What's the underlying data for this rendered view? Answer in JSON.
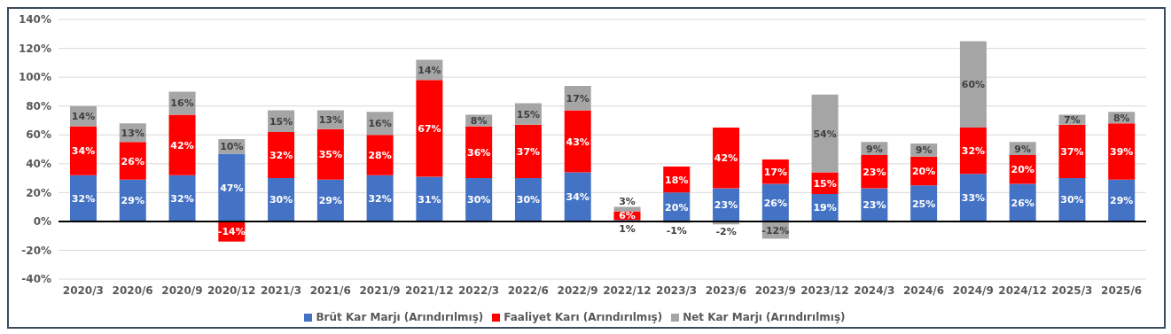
{
  "chart_data": {
    "type": "bar",
    "stacked": true,
    "categories": [
      "2020/3",
      "2020/6",
      "2020/9",
      "2020/12",
      "2021/3",
      "2021/6",
      "2021/9",
      "2021/12",
      "2022/3",
      "2022/6",
      "2022/9",
      "2022/12",
      "2023/3",
      "2023/6",
      "2023/9",
      "2023/12",
      "2024/3",
      "2024/6",
      "2024/9",
      "2024/12",
      "2025/3",
      "2025/6"
    ],
    "series": [
      {
        "name": "Brüt Kar Marjı (Arındırılmış)",
        "color": "#4472c4",
        "values": [
          32,
          29,
          32,
          47,
          30,
          29,
          32,
          31,
          30,
          30,
          34,
          1,
          20,
          23,
          26,
          19,
          23,
          25,
          33,
          26,
          30,
          29
        ],
        "value_labels": [
          "32%",
          "29%",
          "32%",
          "47%",
          "30%",
          "29%",
          "32%",
          "31%",
          "30%",
          "30%",
          "34%",
          "1%",
          "20%",
          "23%",
          "26%",
          "19%",
          "23%",
          "25%",
          "33%",
          "26%",
          "30%",
          "29%"
        ]
      },
      {
        "name": "Faaliyet Karı (Arındırılmış)",
        "color": "#ff0000",
        "values": [
          34,
          26,
          42,
          -14,
          32,
          35,
          28,
          67,
          36,
          37,
          43,
          6,
          18,
          42,
          17,
          15,
          23,
          20,
          32,
          20,
          37,
          39
        ],
        "value_labels": [
          "34%",
          "26%",
          "42%",
          "-14%",
          "32%",
          "35%",
          "28%",
          "67%",
          "36%",
          "37%",
          "43%",
          "6%",
          "18%",
          "42%",
          "17%",
          "15%",
          "23%",
          "20%",
          "32%",
          "20%",
          "37%",
          "39%"
        ]
      },
      {
        "name": "Net Kar Marjı (Arındırılmış)",
        "color": "#a5a5a5",
        "values": [
          14,
          13,
          16,
          10,
          15,
          13,
          16,
          14,
          8,
          15,
          17,
          3,
          -1,
          -2,
          -12,
          54,
          9,
          9,
          60,
          9,
          7,
          8
        ],
        "value_labels": [
          "14%",
          "13%",
          "16%",
          "10%",
          "15%",
          "13%",
          "16%",
          "14%",
          "8%",
          "15%",
          "17%",
          "3%",
          "-1%",
          "-2%",
          "-12%",
          "54%",
          "9%",
          "9%",
          "60%",
          "9%",
          "7%",
          "8%"
        ]
      }
    ],
    "ylim": [
      -40,
      140
    ],
    "yticks": [
      {
        "value": -40,
        "label": "-40%"
      },
      {
        "value": -20,
        "label": "-20%"
      },
      {
        "value": 0,
        "label": "0%"
      },
      {
        "value": 20,
        "label": "20%"
      },
      {
        "value": 40,
        "label": "40%"
      },
      {
        "value": 60,
        "label": "60%"
      },
      {
        "value": 80,
        "label": "80%"
      },
      {
        "value": 100,
        "label": "100%"
      },
      {
        "value": 120,
        "label": "120%"
      },
      {
        "value": 140,
        "label": "140%"
      }
    ],
    "ref_lines": [
      {
        "axis": "y",
        "value": 0,
        "color": "#000000"
      }
    ],
    "grid": "y",
    "legend": "bottom"
  }
}
